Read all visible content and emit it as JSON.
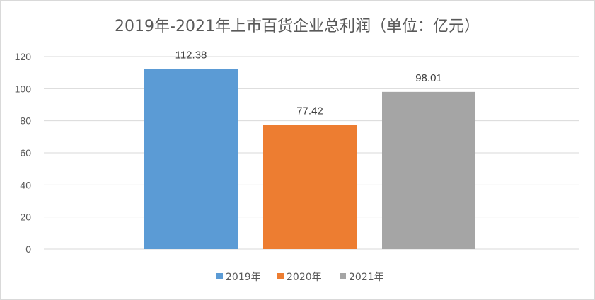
{
  "chart_data": {
    "type": "bar",
    "title": "2019年-2021年上市百货企业总利润（单位：亿元）",
    "categories": [
      "2019年",
      "2020年",
      "2021年"
    ],
    "values": [
      112.38,
      77.42,
      98.01
    ],
    "data_labels": [
      "112.38",
      "77.42",
      "98.01"
    ],
    "colors": [
      "#5b9bd5",
      "#ed7d31",
      "#a5a5a5"
    ],
    "ylim": [
      0,
      120
    ],
    "yticks": [
      "0",
      "20",
      "40",
      "60",
      "80",
      "100",
      "120"
    ],
    "grid": true,
    "legend_position": "bottom",
    "legend": [
      "2019年",
      "2020年",
      "2021年"
    ]
  }
}
